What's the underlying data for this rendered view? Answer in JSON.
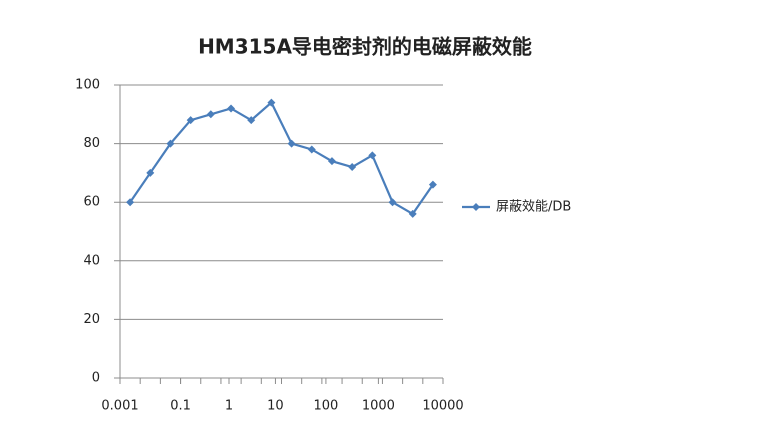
{
  "chart_data": {
    "type": "line",
    "title": "HM315A导电密封剂的电磁屏蔽效能",
    "categories": [
      null,
      null,
      null,
      null,
      null,
      null,
      null,
      null,
      null,
      null,
      null,
      null,
      null,
      null,
      null,
      null
    ],
    "series": [
      {
        "name": "屏蔽效能/DB",
        "color": "#4a7ebb",
        "values": [
          60,
          70,
          80,
          88,
          90,
          92,
          88,
          94,
          80,
          78,
          74,
          72,
          76,
          60,
          56,
          66
        ]
      }
    ],
    "xticks": [
      {
        "value": 0,
        "label": "0.001"
      },
      {
        "value": 3,
        "label": "0.1"
      },
      {
        "value": 5.4,
        "label": "1"
      },
      {
        "value": 7.7,
        "label": "10"
      },
      {
        "value": 10.2,
        "label": "100"
      },
      {
        "value": 12.8,
        "label": "1000"
      },
      {
        "value": 16,
        "label": "10000"
      }
    ],
    "ylim": [
      0,
      100
    ],
    "yticks": [
      0,
      20,
      40,
      60,
      80,
      100
    ],
    "grid": true,
    "legend": "right"
  }
}
